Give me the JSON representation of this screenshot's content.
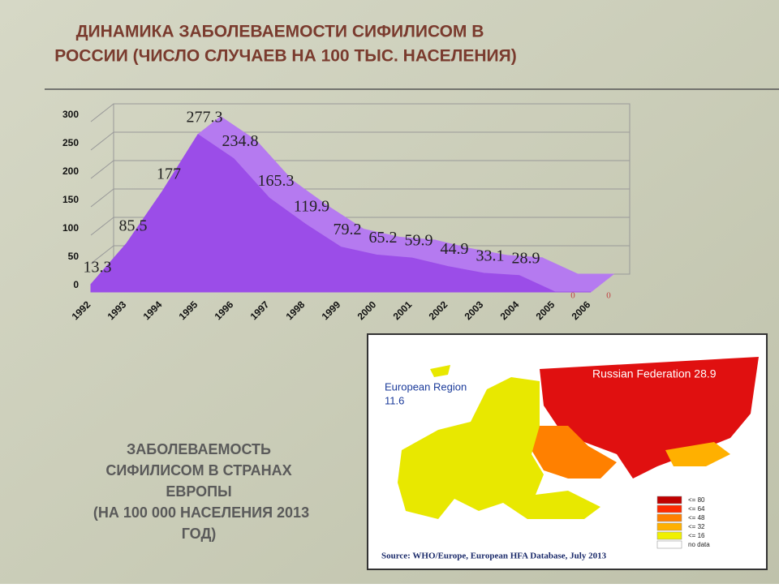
{
  "chart_data": {
    "type": "area3d",
    "title": "ДИНАМИКА ЗАБОЛЕВАЕМОСТИ СИФИЛИСОМ В",
    "subtitle": "РОССИИ (ЧИСЛО СЛУЧАЕВ НА 100 ТЫС. НАСЕЛЕНИЯ)",
    "categories": [
      "1992",
      "1993",
      "1994",
      "1995",
      "1996",
      "1997",
      "1998",
      "1999",
      "2000",
      "2001",
      "2002",
      "2003",
      "2004",
      "2005",
      "2006"
    ],
    "values": [
      13.3,
      85.5,
      177,
      277.3,
      234.8,
      165.3,
      119.9,
      79.2,
      65.2,
      59.9,
      44.9,
      33.1,
      28.9,
      0,
      0
    ],
    "color": "#9b4de8",
    "ylim": [
      0,
      300
    ],
    "yticks": [
      0,
      50,
      100,
      150,
      200,
      250,
      300
    ],
    "grid": true
  },
  "slide": {
    "caption": [
      "ЗАБОЛЕВАЕМОСТЬ",
      "СИФИЛИСОМ  В СТРАНАХ",
      "ЕВРОПЫ",
      "(НА 100 000 НАСЕЛЕНИЯ 2013",
      "ГОД)"
    ],
    "map": {
      "region_label": "European Region",
      "region_value": "11.6",
      "russia": "Russian Federation  28.9",
      "legend": [
        {
          "label": "<= 80",
          "color": "#c00000"
        },
        {
          "label": "<= 64",
          "color": "#ff2a00"
        },
        {
          "label": "<= 48",
          "color": "#ff8000"
        },
        {
          "label": "<= 32",
          "color": "#ffb000"
        },
        {
          "label": "<= 16",
          "color": "#f0f000"
        },
        {
          "label": "no data",
          "color": "#ffffff"
        }
      ],
      "source": "Source: WHO/Europe, European HFA Database, July 2013"
    }
  }
}
